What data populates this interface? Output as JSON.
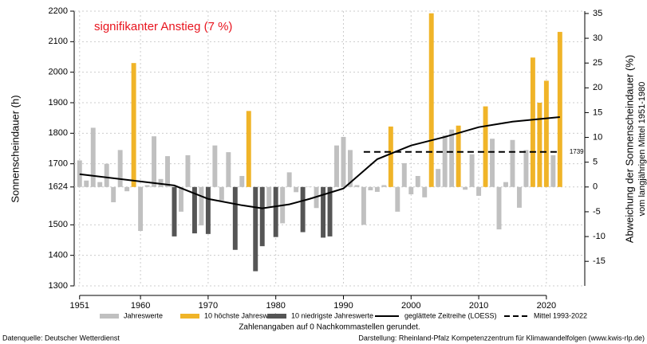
{
  "chart_data": {
    "type": "bar",
    "annotation": "signifikanter Anstieg (7 %)",
    "ylabel": "Sonnenscheindauer (h)",
    "y2label": "Abweichung der Sonnenscheindauer (%)",
    "y2label_sub": "vom langjährigen Mittel 1951-1980",
    "note": "Zahlenangaben auf 0 Nachkommastellen gerundet.",
    "source": "Datenquelle: Deutscher Wetterdienst",
    "credit": "Darstellung: Rheinland-Pfalz Kompetenzzentrum für Klimawandelfolgen (www.kwis-rlp.de)",
    "x": [
      1951,
      1952,
      1953,
      1954,
      1955,
      1956,
      1957,
      1958,
      1959,
      1960,
      1961,
      1962,
      1963,
      1964,
      1965,
      1966,
      1967,
      1968,
      1969,
      1970,
      1971,
      1972,
      1973,
      1974,
      1975,
      1976,
      1977,
      1978,
      1979,
      1980,
      1981,
      1982,
      1983,
      1984,
      1985,
      1986,
      1987,
      1988,
      1989,
      1990,
      1991,
      1992,
      1993,
      1994,
      1995,
      1996,
      1997,
      1998,
      1999,
      2000,
      2001,
      2002,
      2003,
      2004,
      2005,
      2006,
      2007,
      2008,
      2009,
      2010,
      2011,
      2012,
      2013,
      2014,
      2015,
      2016,
      2017,
      2018,
      2019,
      2020,
      2021,
      2022
    ],
    "series": [
      {
        "name": "Jahreswerte",
        "color": "#c0c0c0",
        "values": [
          1711,
          1645,
          1818,
          1640,
          1700,
          1574,
          1745,
          1610,
          null,
          1480,
          1630,
          1790,
          1650,
          1725,
          null,
          1543,
          1728,
          null,
          1498,
          null,
          1760,
          1580,
          1738,
          null,
          1660,
          null,
          null,
          null,
          1560,
          null,
          1505,
          1672,
          1607,
          null,
          1625,
          1555,
          null,
          null,
          1760,
          1788,
          1745,
          1630,
          1500,
          1613,
          1608,
          1630,
          null,
          1543,
          1702,
          1600,
          1660,
          1590,
          null,
          1683,
          1793,
          1812,
          null,
          1615,
          1731,
          1595,
          null,
          1782,
          1485,
          1640,
          1778,
          1556,
          1745,
          null,
          null,
          null,
          1728,
          null
        ]
      },
      {
        "name": "10 höchste Jahreswerte",
        "color": "#f0b428",
        "values": [
          null,
          null,
          null,
          null,
          null,
          null,
          null,
          null,
          2030,
          null,
          null,
          null,
          null,
          null,
          null,
          null,
          null,
          null,
          null,
          null,
          null,
          null,
          null,
          null,
          null,
          1873,
          null,
          null,
          null,
          null,
          null,
          null,
          null,
          null,
          null,
          null,
          null,
          null,
          null,
          null,
          null,
          null,
          null,
          null,
          null,
          null,
          1822,
          null,
          null,
          null,
          null,
          null,
          2193,
          null,
          null,
          null,
          1825,
          null,
          null,
          null,
          1888,
          null,
          null,
          null,
          null,
          null,
          null,
          2048,
          1900,
          1972,
          null,
          2132
        ]
      },
      {
        "name": "10 niedrigste Jahreswerte",
        "color": "#555555",
        "values": [
          null,
          null,
          null,
          null,
          null,
          null,
          null,
          null,
          null,
          null,
          null,
          null,
          null,
          null,
          1462,
          null,
          null,
          1472,
          null,
          1470,
          null,
          null,
          null,
          1418,
          null,
          null,
          1348,
          1430,
          null,
          1460,
          null,
          null,
          null,
          1476,
          null,
          null,
          1458,
          1462,
          null,
          null,
          null,
          null,
          null,
          null,
          null,
          null,
          null,
          null,
          null,
          null,
          null,
          null,
          null,
          null,
          null,
          null,
          null,
          null,
          null,
          null,
          null,
          null,
          null,
          null,
          null,
          null,
          null,
          null,
          null,
          null,
          null,
          null
        ]
      },
      {
        "name": "geglättete Zeitreihe (LOESS)",
        "type": "line",
        "color": "#000000",
        "x": [
          1951,
          1960,
          1965,
          1970,
          1975,
          1978,
          1982,
          1985,
          1990,
          1995,
          2000,
          2005,
          2010,
          2015,
          2022
        ],
        "values": [
          1666,
          1642,
          1629,
          1585,
          1564,
          1554,
          1567,
          1585,
          1619,
          1715,
          1760,
          1788,
          1820,
          1838,
          1853
        ]
      },
      {
        "name": "Mittel 1993-2022",
        "type": "line",
        "dashed": true,
        "color": "#000000",
        "x": [
          1993,
          2022
        ],
        "values": [
          1739,
          1739
        ]
      }
    ],
    "xlim": [
      1950.2,
      2023.2
    ],
    "xticks": [
      1951,
      1960,
      1970,
      1980,
      1990,
      2000,
      2010,
      2020
    ],
    "ylim": [
      1300,
      2200
    ],
    "yticks": [
      1300,
      1400,
      1500,
      1624,
      1700,
      1800,
      1900,
      2000,
      2100,
      2200
    ],
    "y2lim": [
      -19.95,
      35.47
    ],
    "y2ticks": [
      -15,
      -10,
      -5,
      0,
      5,
      10,
      15,
      20,
      25,
      30,
      35
    ],
    "grid": true
  }
}
